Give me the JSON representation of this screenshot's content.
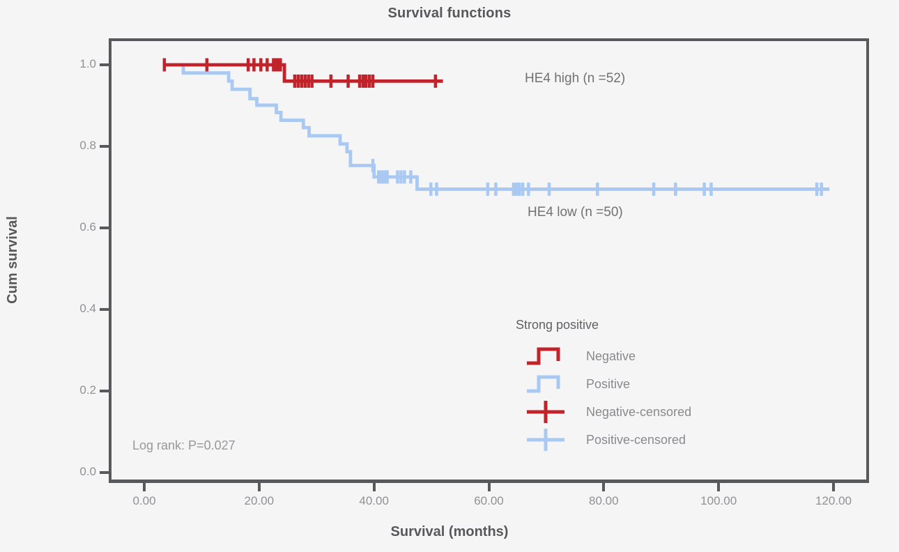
{
  "colors": {
    "negative": "#c0232a",
    "positive": "#a9c9f2",
    "axis": "#58595b",
    "title_text": "#58585a",
    "tick_text": "#8f9194",
    "series_label_text": "#717174",
    "legend_title_text": "#616164",
    "legend_label_text": "#8a8a8d",
    "logrank_text": "#98989b",
    "background": "#f5f5f6"
  },
  "chart_data": {
    "type": "line",
    "subtype": "kaplan-meier-step",
    "title": "Survival functions",
    "xlabel": "Survival (months)",
    "ylabel": "Cum survival",
    "xlim": [
      0,
      120
    ],
    "ylim": [
      0.0,
      1.0
    ],
    "grid": false,
    "x_ticks": [
      {
        "value": 0,
        "label": "0.00"
      },
      {
        "value": 20,
        "label": "20.00"
      },
      {
        "value": 40,
        "label": "40.00"
      },
      {
        "value": 60,
        "label": "60.00"
      },
      {
        "value": 80,
        "label": "80.00"
      },
      {
        "value": 100,
        "label": "100.00"
      },
      {
        "value": 120,
        "label": "120.00"
      }
    ],
    "y_ticks": [
      {
        "value": 1.0,
        "label": "1.0"
      },
      {
        "value": 0.8,
        "label": "0.8"
      },
      {
        "value": 0.6,
        "label": "0.6"
      },
      {
        "value": 0.4,
        "label": "0.4"
      },
      {
        "value": 0.2,
        "label": "0.2"
      },
      {
        "value": 0.0,
        "label": "0.0"
      }
    ],
    "series": [
      {
        "name": "Positive",
        "curve_label": "HE4 low (n =50)",
        "n": 50,
        "color": "#a9c9f2",
        "start": [
          3.4,
          1.0
        ],
        "steps": [
          [
            6.8,
            0.98
          ],
          [
            14.7,
            0.96
          ],
          [
            15.3,
            0.94
          ],
          [
            18.4,
            0.917
          ],
          [
            19.6,
            0.901
          ],
          [
            23.0,
            0.883
          ],
          [
            23.8,
            0.864
          ],
          [
            27.7,
            0.846
          ],
          [
            28.7,
            0.826
          ],
          [
            34.1,
            0.806
          ],
          [
            35.3,
            0.787
          ],
          [
            35.9,
            0.753
          ],
          [
            40.0,
            0.725
          ],
          [
            47.5,
            0.695
          ]
        ],
        "end": 119.3,
        "censored": [
          [
            39.8,
            0.753
          ],
          [
            40.8,
            0.725
          ],
          [
            41.3,
            0.725
          ],
          [
            41.8,
            0.725
          ],
          [
            42.3,
            0.725
          ],
          [
            44.1,
            0.725
          ],
          [
            44.7,
            0.725
          ],
          [
            45.3,
            0.725
          ],
          [
            46.4,
            0.725
          ],
          [
            49.9,
            0.695
          ],
          [
            50.9,
            0.695
          ],
          [
            59.8,
            0.695
          ],
          [
            61.2,
            0.695
          ],
          [
            64.3,
            0.695
          ],
          [
            64.8,
            0.695
          ],
          [
            65.3,
            0.695
          ],
          [
            65.9,
            0.695
          ],
          [
            66.9,
            0.695
          ],
          [
            70.5,
            0.695
          ],
          [
            78.9,
            0.695
          ],
          [
            88.7,
            0.695
          ],
          [
            92.5,
            0.695
          ],
          [
            97.5,
            0.695
          ],
          [
            98.7,
            0.695
          ],
          [
            117.1,
            0.695
          ],
          [
            117.9,
            0.695
          ]
        ]
      },
      {
        "name": "Negative",
        "curve_label": "HE4 high (n =52)",
        "n": 52,
        "color": "#c0232a",
        "start": [
          3.4,
          1.0
        ],
        "steps": [
          [
            24.4,
            0.96
          ]
        ],
        "end": 52.0,
        "censored": [
          [
            3.5,
            1.0
          ],
          [
            10.9,
            1.0
          ],
          [
            18.1,
            1.0
          ],
          [
            19.1,
            1.0
          ],
          [
            20.3,
            1.0
          ],
          [
            21.4,
            1.0
          ],
          [
            22.5,
            1.0
          ],
          [
            22.9,
            1.0
          ],
          [
            23.3,
            1.0
          ],
          [
            23.7,
            1.0
          ],
          [
            26.2,
            0.96
          ],
          [
            26.8,
            0.96
          ],
          [
            27.4,
            0.96
          ],
          [
            28.0,
            0.96
          ],
          [
            28.6,
            0.96
          ],
          [
            29.2,
            0.96
          ],
          [
            32.5,
            0.96
          ],
          [
            35.5,
            0.96
          ],
          [
            37.5,
            0.96
          ],
          [
            38.1,
            0.96
          ],
          [
            38.6,
            0.96
          ],
          [
            39.2,
            0.96
          ],
          [
            39.8,
            0.96
          ],
          [
            50.7,
            0.96
          ]
        ]
      }
    ],
    "annotations": {
      "logrank": "Log rank: P=0.027"
    },
    "legend": {
      "title": "Strong positive",
      "position": "inside-lower-right",
      "items": [
        {
          "label": "Negative",
          "glyph": "step-line-icon",
          "color": "#c0232a"
        },
        {
          "label": "Positive",
          "glyph": "step-line-icon",
          "color": "#a9c9f2"
        },
        {
          "label": "Negative-censored",
          "glyph": "plus-cross-icon",
          "color": "#c0232a"
        },
        {
          "label": "Positive-censored",
          "glyph": "plus-cross-icon",
          "color": "#a9c9f2"
        }
      ]
    }
  }
}
